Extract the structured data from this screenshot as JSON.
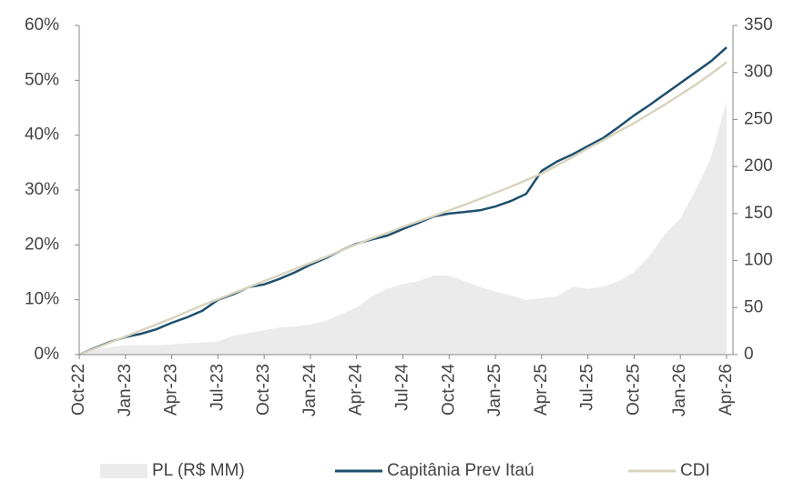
{
  "chart_data": {
    "type": "line",
    "categories": [
      "Oct-22",
      null,
      null,
      "Jan-23",
      null,
      null,
      "Apr-23",
      null,
      null,
      "Jul-23",
      null,
      null,
      "Oct-23",
      null,
      null,
      "Jan-24",
      null,
      null,
      "Apr-24",
      null,
      null,
      "Jul-24",
      null,
      null,
      "Oct-24",
      null,
      null,
      "Jan-25",
      null,
      null,
      "Apr-25",
      null,
      null,
      "Jul-25",
      null,
      null,
      "Oct-25",
      null,
      null,
      "Jan-26",
      null,
      null,
      "Apr-26"
    ],
    "series": [
      {
        "name": "PL (R$ MM)",
        "kind": "area",
        "axis": "y2",
        "color": "#ebebeb",
        "values": [
          0,
          5,
          8,
          10,
          10,
          10,
          11,
          12,
          13,
          14,
          20,
          23,
          26,
          29,
          30,
          32,
          36,
          43,
          50,
          62,
          70,
          75,
          78,
          84,
          84,
          78,
          72,
          67,
          63,
          58,
          60,
          62,
          72,
          70,
          72,
          78,
          88,
          105,
          128,
          145,
          175,
          210,
          270
        ]
      },
      {
        "name": "Capitânia Prev Itaú",
        "color": "#1d4f6e",
        "values": [
          0,
          1.2,
          2.3,
          3.2,
          3.8,
          4.6,
          5.8,
          6.8,
          8.0,
          10.0,
          11.0,
          12.3,
          12.8,
          13.8,
          15.0,
          16.4,
          17.6,
          19.0,
          20.2,
          21.0,
          21.7,
          22.9,
          24.0,
          25.2,
          25.7,
          26.0,
          26.3,
          27.0,
          28.0,
          29.3,
          33.5,
          35.2,
          36.5,
          38.0,
          39.5,
          41.5,
          43.6,
          45.5,
          47.5,
          49.5,
          51.5,
          53.5,
          56.0
        ]
      },
      {
        "name": "CDI",
        "color": "#d9d4bf",
        "values": [
          0,
          1.1,
          2.2,
          3.3,
          4.4,
          5.5,
          6.6,
          7.8,
          9.0,
          10.1,
          11.2,
          12.3,
          13.4,
          14.5,
          15.6,
          16.7,
          17.8,
          19.0,
          20.1,
          21.2,
          22.2,
          23.3,
          24.3,
          25.3,
          26.3,
          27.3,
          28.4,
          29.5,
          30.6,
          31.8,
          33.0,
          34.5,
          36.0,
          37.6,
          39.1,
          40.7,
          42.2,
          43.9,
          45.6,
          47.4,
          49.2,
          51.2,
          53.3
        ]
      }
    ],
    "ylim": [
      0,
      60
    ],
    "yticks": [
      {
        "value": 0,
        "label": "0%"
      },
      {
        "value": 10,
        "label": "10%"
      },
      {
        "value": 20,
        "label": "20%"
      },
      {
        "value": 30,
        "label": "30%"
      },
      {
        "value": 40,
        "label": "40%"
      },
      {
        "value": 50,
        "label": "50%"
      },
      {
        "value": 60,
        "label": "60%"
      }
    ],
    "y2lim": [
      0,
      350
    ],
    "y2ticks": [
      0,
      50,
      100,
      150,
      200,
      250,
      300,
      350
    ],
    "legend": "bottom"
  }
}
